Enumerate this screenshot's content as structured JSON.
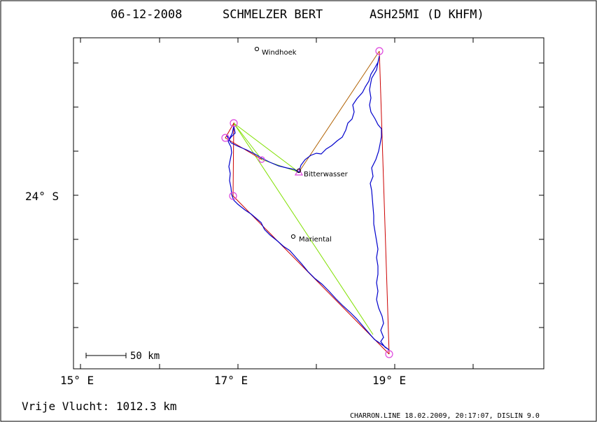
{
  "header": {
    "date": "06-12-2008",
    "pilot": "SCHMELZER BERT",
    "glider": "ASH25MI (D KHFM)"
  },
  "axes": {
    "lat_label": "24° S",
    "lon_labels": [
      "15° E",
      "17° E",
      "19° E"
    ]
  },
  "scale_bar": {
    "label": "50 km"
  },
  "places": [
    {
      "name": "Windhoek"
    },
    {
      "name": "Bitterwasser"
    },
    {
      "name": "Mariental"
    }
  ],
  "footer": {
    "distance": "Vrije Vlucht: 1012.3 km",
    "credit": "CHARRON.LINE 18.02.2009, 20:17:07, DISLIN 9.0"
  },
  "colors": {
    "track": "#0000cc",
    "task_leg": "#cc0000",
    "triangle_leg": "#80e000",
    "turnpoint": "#dd44dd"
  }
}
